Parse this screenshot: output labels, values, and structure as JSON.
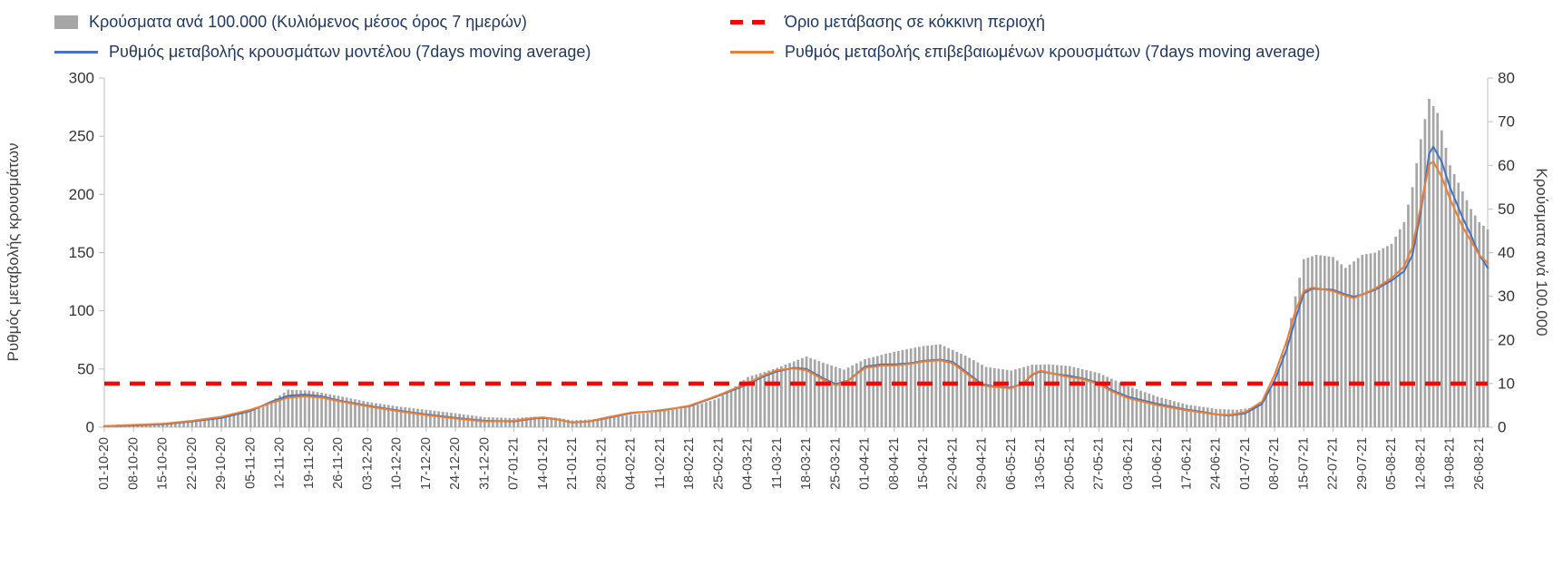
{
  "legend": {
    "items": [
      {
        "id": "cases-bars",
        "type": "bar",
        "color": "#A6A6A6",
        "label": "Κρούσματα ανά 100.000 (Κυλιόμενος μέσος όρος 7 ημερών)"
      },
      {
        "id": "red-threshold",
        "type": "dash",
        "color": "#FF0000",
        "label": "Όριο μετάβασης σε κόκκινη περιοχή"
      },
      {
        "id": "model-rate",
        "type": "line",
        "color": "#4472C4",
        "label": "Ρυθμός μεταβολής κρουσμάτων μοντέλου (7days moving average)"
      },
      {
        "id": "confirmed-rate",
        "type": "line",
        "color": "#ED7D31",
        "label": "Ρυθμός μεταβολής επιβεβαιωμένων κρουσμάτων (7days moving average)"
      }
    ]
  },
  "chart_data": {
    "type": "combo-bar-line",
    "left_axis": {
      "title": "Ρυθμός μεταβολής κρουσμάτων",
      "min": 0,
      "max": 300,
      "ticks": [
        0,
        50,
        100,
        150,
        200,
        250,
        300
      ]
    },
    "right_axis": {
      "title": "Κρούσματα ανά 100.000",
      "min": 0,
      "max": 80,
      "ticks": [
        0,
        10,
        20,
        30,
        40,
        50,
        60,
        70,
        80
      ]
    },
    "x_labels": [
      "01-10-20",
      "08-10-20",
      "15-10-20",
      "22-10-20",
      "29-10-20",
      "05-11-20",
      "12-11-20",
      "19-11-20",
      "26-11-20",
      "03-12-20",
      "10-12-20",
      "17-12-20",
      "24-12-20",
      "31-12-20",
      "07-01-21",
      "14-01-21",
      "21-01-21",
      "28-01-21",
      "04-02-21",
      "11-02-21",
      "18-02-21",
      "25-02-21",
      "04-03-21",
      "11-03-21",
      "18-03-21",
      "25-03-21",
      "01-04-21",
      "08-04-21",
      "15-04-21",
      "22-04-21",
      "29-04-21",
      "06-05-21",
      "13-05-21",
      "20-05-21",
      "27-05-21",
      "03-06-21",
      "10-06-21",
      "17-06-21",
      "24-06-21",
      "01-07-21",
      "08-07-21",
      "15-07-21",
      "22-07-21",
      "29-07-21",
      "05-08-21",
      "12-08-21",
      "19-08-21",
      "26-08-21"
    ],
    "days_per_label": 7,
    "total_days": 331,
    "grid": "off",
    "axis_color": "#BFBFBF",
    "threshold": {
      "value_right_axis": 10,
      "value_left_axis": 37.5,
      "color": "#FF0000",
      "style": "dashed"
    },
    "keypoints_note": "keypoints are [dayIndex, value] control points read from the figure; daily values linearly interpolated; day 0 = 01-10-20",
    "series": [
      {
        "name": "Κρούσματα ανά 100.000 (Κυλιόμενος μέσος όρος 7 ημερών)",
        "type": "bar",
        "axis": "right",
        "color": "#A6A6A6",
        "keypoints": [
          [
            0,
            0.3
          ],
          [
            7,
            0.5
          ],
          [
            14,
            0.8
          ],
          [
            21,
            1.5
          ],
          [
            28,
            2.2
          ],
          [
            35,
            3.5
          ],
          [
            40,
            6
          ],
          [
            44,
            8.6
          ],
          [
            49,
            8.4
          ],
          [
            56,
            7.2
          ],
          [
            63,
            5.8
          ],
          [
            70,
            4.8
          ],
          [
            77,
            4.0
          ],
          [
            84,
            3.2
          ],
          [
            91,
            2.3
          ],
          [
            98,
            2.1
          ],
          [
            103,
            2.4
          ],
          [
            108,
            2.2
          ],
          [
            112,
            1.6
          ],
          [
            119,
            1.9
          ],
          [
            126,
            2.8
          ],
          [
            133,
            3.6
          ],
          [
            140,
            4.6
          ],
          [
            147,
            6.6
          ],
          [
            154,
            11.5
          ],
          [
            161,
            13.6
          ],
          [
            168,
            16.2
          ],
          [
            172,
            14.8
          ],
          [
            177,
            13.2
          ],
          [
            182,
            15.6
          ],
          [
            189,
            17.3
          ],
          [
            196,
            18.6
          ],
          [
            200,
            19.0
          ],
          [
            206,
            16.4
          ],
          [
            211,
            13.8
          ],
          [
            217,
            13.0
          ],
          [
            222,
            14.3
          ],
          [
            226,
            14.4
          ],
          [
            231,
            14.0
          ],
          [
            238,
            12.4
          ],
          [
            245,
            9.4
          ],
          [
            252,
            7.0
          ],
          [
            259,
            5.2
          ],
          [
            266,
            4.2
          ],
          [
            271,
            4.0
          ],
          [
            276,
            4.6
          ],
          [
            280,
            10
          ],
          [
            283,
            20
          ],
          [
            285,
            30
          ],
          [
            287,
            38.5
          ],
          [
            290,
            39.5
          ],
          [
            294,
            39
          ],
          [
            297,
            36.5
          ],
          [
            301,
            39.5
          ],
          [
            304,
            40
          ],
          [
            308,
            42
          ],
          [
            311,
            47
          ],
          [
            313,
            55
          ],
          [
            315,
            66
          ],
          [
            317,
            75.2
          ],
          [
            319,
            72
          ],
          [
            322,
            60
          ],
          [
            325,
            54
          ],
          [
            327,
            50
          ],
          [
            329,
            47
          ],
          [
            331,
            45.3
          ]
        ]
      },
      {
        "name": "Ρυθμός μεταβολής κρουσμάτων μοντέλου (7days moving average)",
        "type": "line",
        "axis": "left",
        "color": "#4472C4",
        "keypoints": [
          [
            0,
            1
          ],
          [
            7,
            1.5
          ],
          [
            14,
            2.5
          ],
          [
            21,
            5
          ],
          [
            28,
            8
          ],
          [
            35,
            14
          ],
          [
            40,
            22
          ],
          [
            44,
            27
          ],
          [
            48,
            28
          ],
          [
            52,
            26.5
          ],
          [
            56,
            23
          ],
          [
            63,
            18.5
          ],
          [
            70,
            14.5
          ],
          [
            77,
            11
          ],
          [
            84,
            8
          ],
          [
            91,
            5.5
          ],
          [
            98,
            5
          ],
          [
            103,
            7.5
          ],
          [
            105,
            8
          ],
          [
            108,
            7
          ],
          [
            112,
            4
          ],
          [
            116,
            5
          ],
          [
            119,
            7
          ],
          [
            126,
            12
          ],
          [
            133,
            14.5
          ],
          [
            140,
            18
          ],
          [
            147,
            27
          ],
          [
            154,
            37
          ],
          [
            158,
            44
          ],
          [
            161,
            48
          ],
          [
            165,
            51
          ],
          [
            168,
            50
          ],
          [
            172,
            42
          ],
          [
            175,
            37
          ],
          [
            178,
            40
          ],
          [
            182,
            52
          ],
          [
            186,
            54
          ],
          [
            189,
            54
          ],
          [
            193,
            55
          ],
          [
            196,
            57
          ],
          [
            200,
            58
          ],
          [
            203,
            56
          ],
          [
            206,
            48
          ],
          [
            210,
            37
          ],
          [
            213,
            35
          ],
          [
            217,
            34
          ],
          [
            220,
            38
          ],
          [
            222,
            45
          ],
          [
            224,
            48
          ],
          [
            227,
            46
          ],
          [
            231,
            44
          ],
          [
            234,
            42
          ],
          [
            238,
            38
          ],
          [
            241,
            32
          ],
          [
            245,
            26
          ],
          [
            252,
            20
          ],
          [
            259,
            15
          ],
          [
            263,
            13
          ],
          [
            266,
            11
          ],
          [
            269,
            10
          ],
          [
            273,
            12
          ],
          [
            277,
            20
          ],
          [
            280,
            40
          ],
          [
            283,
            68
          ],
          [
            285,
            93
          ],
          [
            287,
            115
          ],
          [
            289,
            119
          ],
          [
            294,
            118
          ],
          [
            297,
            114
          ],
          [
            299,
            112
          ],
          [
            301,
            114
          ],
          [
            304,
            118
          ],
          [
            308,
            126
          ],
          [
            311,
            134
          ],
          [
            313,
            148
          ],
          [
            315,
            185
          ],
          [
            317,
            235
          ],
          [
            318,
            241
          ],
          [
            320,
            228
          ],
          [
            322,
            206
          ],
          [
            325,
            180
          ],
          [
            327,
            165
          ],
          [
            329,
            148
          ],
          [
            331,
            137
          ]
        ]
      },
      {
        "name": "Ρυθμός μεταβολής επιβεβαιωμένων κρουσμάτων (7days moving average)",
        "type": "line",
        "axis": "left",
        "color": "#ED7D31",
        "keypoints": [
          [
            0,
            1
          ],
          [
            7,
            2
          ],
          [
            14,
            3
          ],
          [
            21,
            5.5
          ],
          [
            28,
            9
          ],
          [
            35,
            15
          ],
          [
            40,
            21
          ],
          [
            44,
            25.5
          ],
          [
            48,
            26.5
          ],
          [
            52,
            25.5
          ],
          [
            56,
            22.5
          ],
          [
            63,
            18
          ],
          [
            70,
            14
          ],
          [
            77,
            10.5
          ],
          [
            84,
            7.5
          ],
          [
            91,
            5
          ],
          [
            98,
            5.5
          ],
          [
            103,
            8
          ],
          [
            105,
            8.5
          ],
          [
            108,
            7
          ],
          [
            112,
            4
          ],
          [
            116,
            5
          ],
          [
            119,
            7.5
          ],
          [
            126,
            12.5
          ],
          [
            133,
            14
          ],
          [
            140,
            18.5
          ],
          [
            147,
            27.5
          ],
          [
            154,
            38
          ],
          [
            158,
            45
          ],
          [
            161,
            49
          ],
          [
            165,
            50.5
          ],
          [
            168,
            49
          ],
          [
            172,
            41
          ],
          [
            175,
            36
          ],
          [
            178,
            40
          ],
          [
            182,
            51
          ],
          [
            186,
            53
          ],
          [
            189,
            53
          ],
          [
            193,
            54.5
          ],
          [
            196,
            56.5
          ],
          [
            200,
            57.5
          ],
          [
            203,
            55
          ],
          [
            206,
            47
          ],
          [
            210,
            36
          ],
          [
            213,
            34.5
          ],
          [
            217,
            33.5
          ],
          [
            220,
            38
          ],
          [
            222,
            45.5
          ],
          [
            224,
            48.5
          ],
          [
            227,
            46
          ],
          [
            231,
            43
          ],
          [
            234,
            41.5
          ],
          [
            238,
            37
          ],
          [
            241,
            31
          ],
          [
            245,
            25
          ],
          [
            252,
            19
          ],
          [
            259,
            14.5
          ],
          [
            263,
            12.5
          ],
          [
            266,
            11
          ],
          [
            269,
            10.5
          ],
          [
            273,
            13
          ],
          [
            277,
            22
          ],
          [
            280,
            45
          ],
          [
            283,
            75
          ],
          [
            285,
            100
          ],
          [
            287,
            117
          ],
          [
            289,
            120
          ],
          [
            294,
            117
          ],
          [
            297,
            113
          ],
          [
            299,
            111
          ],
          [
            301,
            114
          ],
          [
            304,
            119
          ],
          [
            308,
            128
          ],
          [
            311,
            138
          ],
          [
            313,
            155
          ],
          [
            315,
            190
          ],
          [
            317,
            226
          ],
          [
            318,
            228
          ],
          [
            320,
            215
          ],
          [
            322,
            196
          ],
          [
            325,
            172
          ],
          [
            327,
            160
          ],
          [
            329,
            148
          ],
          [
            331,
            141
          ]
        ]
      }
    ]
  }
}
